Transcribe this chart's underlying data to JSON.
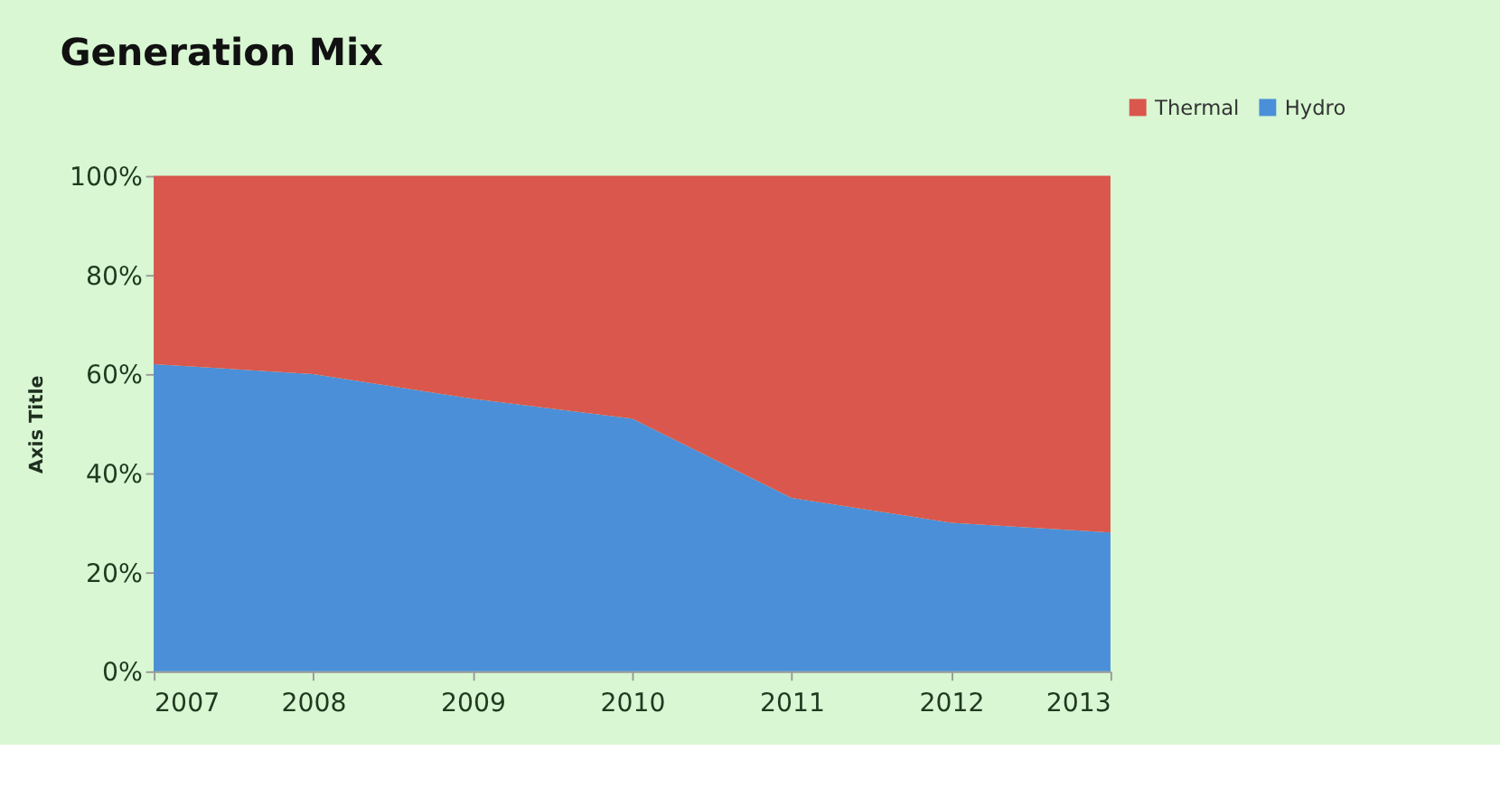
{
  "chart_data": {
    "type": "area",
    "stacked": true,
    "title": "Generation Mix",
    "ylabel": "Axis Title",
    "categories": [
      "2007",
      "2008",
      "2009",
      "2010",
      "2011",
      "2012",
      "2013"
    ],
    "series": [
      {
        "name": "Hydro",
        "color": "#4a8fd8",
        "values": [
          62,
          60,
          55,
          51,
          35,
          30,
          28
        ]
      },
      {
        "name": "Thermal",
        "color": "#d9574c",
        "values": [
          38,
          40,
          45,
          49,
          65,
          70,
          72
        ]
      }
    ],
    "ylim": [
      0,
      100
    ],
    "yticks": [
      {
        "value": 0,
        "label": "0%"
      },
      {
        "value": 20,
        "label": "20%"
      },
      {
        "value": 40,
        "label": "40%"
      },
      {
        "value": 60,
        "label": "60%"
      },
      {
        "value": 80,
        "label": "80%"
      },
      {
        "value": 100,
        "label": "100%"
      }
    ],
    "grid": false,
    "legend": "top right"
  }
}
